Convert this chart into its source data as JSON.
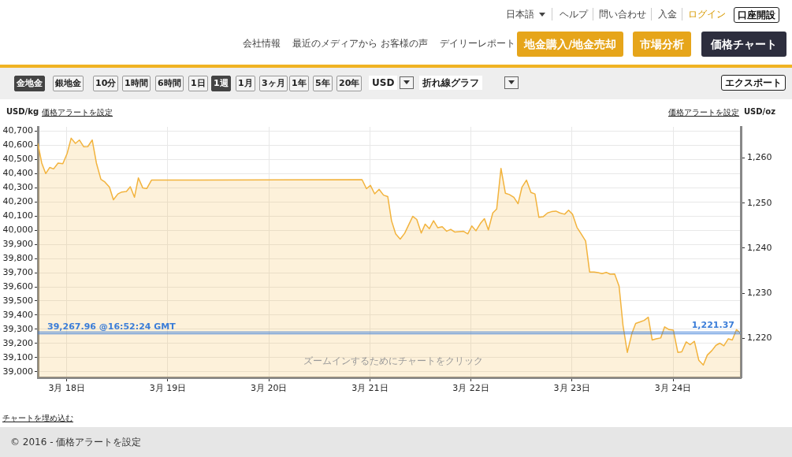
{
  "chart_data": {
    "type": "area",
    "ylabel": "USD/kg",
    "y2label": "USD/oz",
    "annotations": [
      "日本語",
      "ヘルプ",
      "問い合わせ",
      "入金",
      "ログイン",
      "口座開設",
      "会社情報",
      "最近のメディアから",
      "お客様の声",
      "デイリーレポート",
      "地金購入/地金売却",
      "市場分析",
      "価格チャート",
      "金地金",
      "銀地金",
      "10分",
      "1時間",
      "6時間",
      "1日",
      "1週",
      "1月",
      "3ヶ月",
      "1年",
      "5年",
      "20年",
      "USD",
      "折れ線グラフ",
      "エクスポート",
      "価格アラートを設定",
      "価格アラートを設定",
      "ズームインするためにチャートをクリック",
      "チャートを埋め込む",
      "© 2016 - 価格アラートを設定"
    ],
    "series": [
      {
        "color": "#f2b33d",
        "x": [
          "--03-17T17:08",
          "--03-17T18:04",
          "--03-17T19:00",
          "--03-17T19:57",
          "--03-17T20:53",
          "--03-17T21:56",
          "--03-17T23:04",
          "--03-18T00:07",
          "--03-18T01:03",
          "--03-18T02:04",
          "--03-18T03:00",
          "--03-18T04:03",
          "--03-18T05:00",
          "--03-18T06:03",
          "--03-18T07:03",
          "--03-18T08:07",
          "--03-18T09:03",
          "--03-18T10:09",
          "--03-18T11:05",
          "--03-18T12:09",
          "--03-18T13:05",
          "--03-18T14:10",
          "--03-18T15:06",
          "--03-18T16:05",
          "--03-18T17:01",
          "--03-18T18:04",
          "--03-18T19:00",
          "--03-18T20:08",
          "--03-20T22:08",
          "--03-20T23:11",
          "--03-21T00:07",
          "--03-21T01:08",
          "--03-21T02:11",
          "--03-21T03:14",
          "--03-21T04:15",
          "--03-21T05:08",
          "--03-21T06:07",
          "--03-21T07:12",
          "--03-21T08:15",
          "--03-21T09:14",
          "--03-21T10:11",
          "--03-21T11:08",
          "--03-21T12:12",
          "--03-21T13:08",
          "--03-21T14:08",
          "--03-21T15:07",
          "--03-21T16:08",
          "--03-21T17:11",
          "--03-21T18:14",
          "--03-21T19:12",
          "--03-21T20:08",
          "--03-21T22:11",
          "--03-21T23:15",
          "--03-22T00:12",
          "--03-22T01:11",
          "--03-22T02:15",
          "--03-22T03:12",
          "--03-22T04:08",
          "--03-22T05:11",
          "--03-22T06:07",
          "--03-22T07:08",
          "--03-22T08:11",
          "--03-22T09:07",
          "--03-22T10:11",
          "--03-22T11:11",
          "--03-22T12:07",
          "--03-22T13:11",
          "--03-22T14:15",
          "--03-22T15:12",
          "--03-22T16:08",
          "--03-22T17:08",
          "--03-22T18:12",
          "--03-22T19:08",
          "--03-22T20:11",
          "--03-22T21:07",
          "--03-22T22:15",
          "--03-22T23:11",
          "--03-23T00:07",
          "--03-23T01:11",
          "--03-23T02:11",
          "--03-23T03:14",
          "--03-23T04:11",
          "--03-23T05:15",
          "--03-23T06:12",
          "--03-23T07:08",
          "--03-23T08:08",
          "--03-23T09:04",
          "--03-23T10:08",
          "--03-23T11:11",
          "--03-23T12:07",
          "--03-23T13:08",
          "--03-23T14:11",
          "--03-23T15:07",
          "--03-23T16:11",
          "--03-23T17:08",
          "--03-23T18:07",
          "--03-23T19:03",
          "--03-23T20:00",
          "--03-23T21:04",
          "--03-23T22:00",
          "--03-23T23:04",
          "--03-24T00:04",
          "--03-24T01:08",
          "--03-24T02:04",
          "--03-24T03:07",
          "--03-24T04:03",
          "--03-24T05:04",
          "--03-24T06:07",
          "--03-24T07:11",
          "--03-24T08:08",
          "--03-24T09:14",
          "--03-24T10:11",
          "--03-24T11:08",
          "--03-24T12:04",
          "--03-24T13:08",
          "--03-24T14:04",
          "--03-24T15:04",
          "--03-24T16:02"
        ],
        "values": [
          40613,
          40474,
          40400,
          40443,
          40433,
          40474,
          40470,
          40544,
          40650,
          40613,
          40637,
          40589,
          40591,
          40637,
          40474,
          40359,
          40341,
          40304,
          40215,
          40256,
          40270,
          40274,
          40307,
          40233,
          40370,
          40298,
          40294,
          40354,
          40357,
          40293,
          40317,
          40257,
          40289,
          40248,
          40237,
          40067,
          39974,
          39937,
          39978,
          40039,
          40098,
          40076,
          39980,
          40043,
          40011,
          40067,
          40017,
          40024,
          39993,
          40006,
          39987,
          39993,
          39974,
          40030,
          39996,
          40048,
          40081,
          40002,
          40122,
          40150,
          40437,
          40261,
          40252,
          40233,
          40187,
          40304,
          40354,
          40267,
          40256,
          40091,
          40095,
          40122,
          40131,
          40135,
          40122,
          40113,
          40141,
          40113,
          40020,
          39974,
          39924,
          39705,
          39704,
          39700,
          39693,
          39702,
          39689,
          39691,
          39604,
          39326,
          39137,
          39267,
          39341,
          39352,
          39363,
          39385,
          39224,
          39233,
          39239,
          39317,
          39298,
          39294,
          39137,
          39141,
          39211,
          39191,
          39215,
          39081,
          39048,
          39118,
          39150,
          39187,
          39202,
          39183,
          39233,
          39224,
          39298,
          39270
        ]
      }
    ],
    "xlim": [
      "--03-17T17:08",
      "--03-24T16:05"
    ],
    "xticks": [
      {
        "value": "--03-18",
        "label": "3月 18日"
      },
      {
        "value": "--03-19",
        "label": "3月 19日"
      },
      {
        "value": "--03-20",
        "label": "3月 20日"
      },
      {
        "value": "--03-21",
        "label": "3月 21日"
      },
      {
        "value": "--03-22",
        "label": "3月 22日"
      },
      {
        "value": "--03-23",
        "label": "3月 23日"
      },
      {
        "value": "--03-24",
        "label": "3月 24日"
      }
    ],
    "ylim": [
      38960,
      40730
    ],
    "yticks": [
      {
        "value": 39000,
        "label": "39,000"
      },
      {
        "value": 39100,
        "label": "39,100"
      },
      {
        "value": 39200,
        "label": "39,200"
      },
      {
        "value": 39300,
        "label": "39,300"
      },
      {
        "value": 39400,
        "label": "39,400"
      },
      {
        "value": 39500,
        "label": "39,500"
      },
      {
        "value": 39600,
        "label": "39,600"
      },
      {
        "value": 39700,
        "label": "39,700"
      },
      {
        "value": 39800,
        "label": "39,800"
      },
      {
        "value": 39900,
        "label": "39,900"
      },
      {
        "value": 40000,
        "label": "40,000"
      },
      {
        "value": 40100,
        "label": "40,100"
      },
      {
        "value": 40200,
        "label": "40,200"
      },
      {
        "value": 40300,
        "label": "40,300"
      },
      {
        "value": 40400,
        "label": "40,400"
      },
      {
        "value": 40500,
        "label": "40,500"
      },
      {
        "value": 40600,
        "label": "40,600"
      },
      {
        "value": 40700,
        "label": "40,700"
      }
    ],
    "y2lim": [
      1211.3,
      1266.9
    ],
    "y2ticks": [
      {
        "value": 1220,
        "label": "1,220"
      },
      {
        "value": 1230,
        "label": "1,230"
      },
      {
        "value": 1240,
        "label": "1,240"
      },
      {
        "value": 1250,
        "label": "1,250"
      },
      {
        "value": 1260,
        "label": "1,260"
      }
    ],
    "ref_lines": [
      {
        "axis": "y",
        "value": 39267.96,
        "label": "39,267.96 @16:52:24 GMT",
        "color": "#3b7dd8"
      },
      {
        "axis": "y2",
        "value": 1221.37,
        "label": "1,221.37",
        "color": "#3b7dd8"
      }
    ],
    "grid": true,
    "legend": false
  }
}
